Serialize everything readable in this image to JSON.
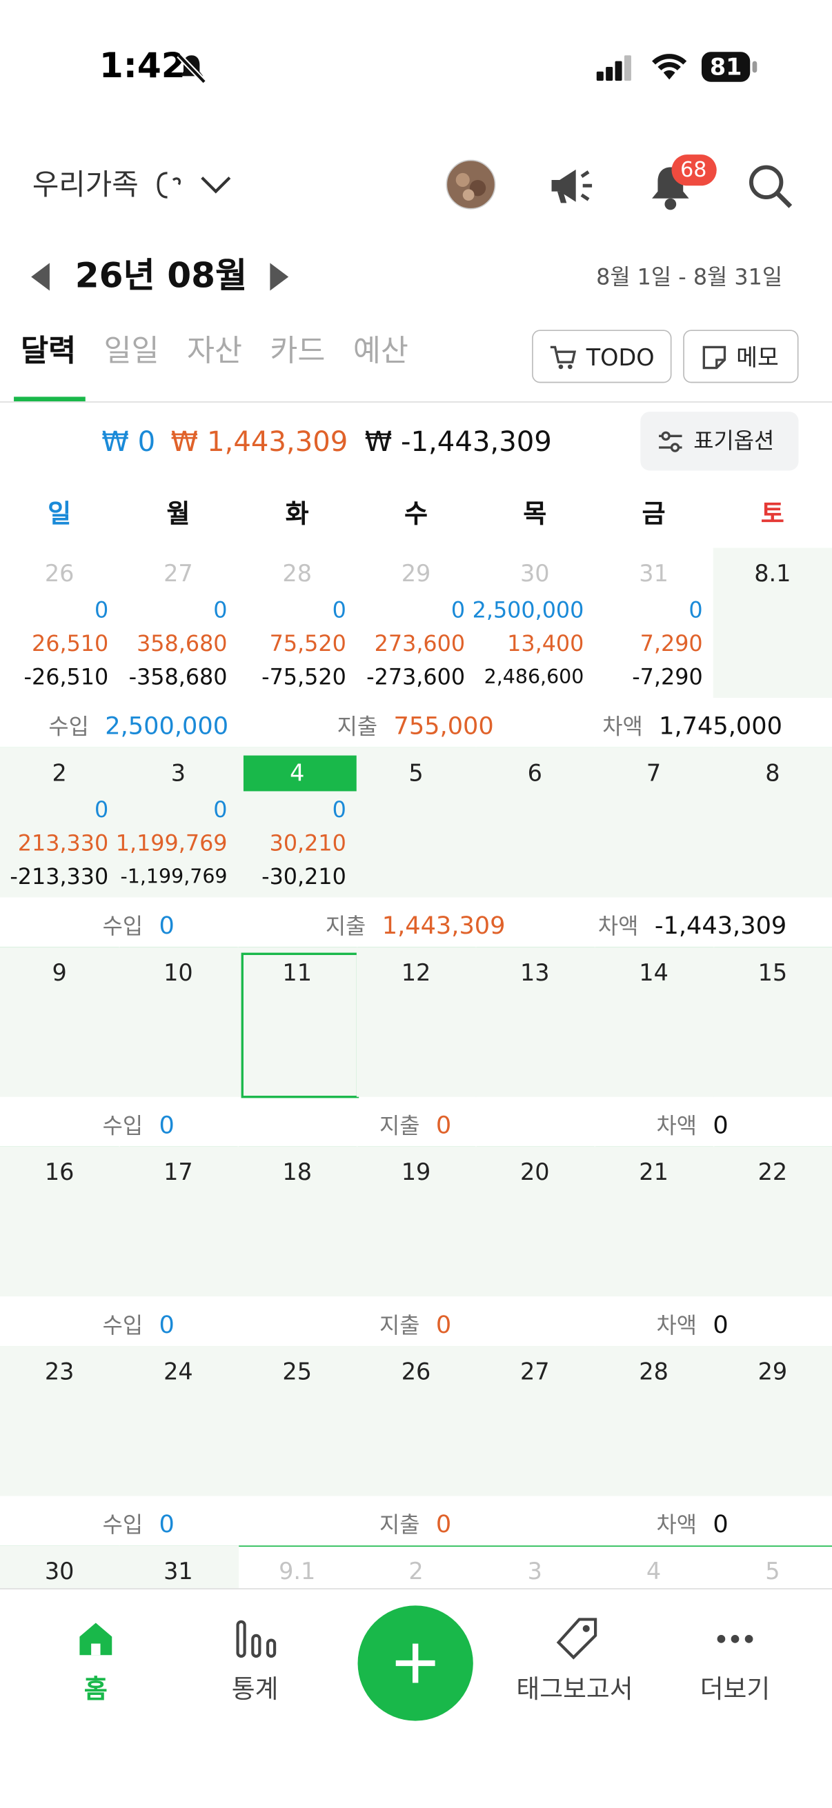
{
  "status": {
    "time": "1:42",
    "battery": "81"
  },
  "header": {
    "group": "우리가족",
    "badge": "68"
  },
  "month": {
    "title": "26년 08월",
    "range": "8월 1일 - 8월 31일"
  },
  "tabs": [
    "달력",
    "일일",
    "자산",
    "카드",
    "예산"
  ],
  "buttons": [
    "TODO",
    "메모"
  ],
  "summary": {
    "income": "₩ 0",
    "expense": "₩ 1,443,309",
    "balance": "₩ -1,443,309",
    "option": "표기옵션"
  },
  "weekdays": [
    "일",
    "월",
    "화",
    "수",
    "목",
    "금",
    "토"
  ],
  "total_labels": [
    "수입",
    "지출",
    "차액"
  ],
  "weeks": [
    {
      "days": [
        {
          "date": "26",
          "other_month": true,
          "income": "0",
          "expense": "26,510",
          "balance": "-26,510"
        },
        {
          "date": "27",
          "other_month": true,
          "income": "0",
          "expense": "358,680",
          "balance": "-358,680"
        },
        {
          "date": "28",
          "other_month": true,
          "income": "0",
          "expense": "75,520",
          "balance": "-75,520"
        },
        {
          "date": "29",
          "other_month": true,
          "income": "0",
          "expense": "273,600",
          "balance": "-273,600"
        },
        {
          "date": "30",
          "other_month": true,
          "income": "2,500,000",
          "expense": "13,400",
          "balance": "2,486,600"
        },
        {
          "date": "31",
          "other_month": true,
          "income": "0",
          "expense": "7,290",
          "balance": "-7,290"
        },
        {
          "date": "8.1"
        }
      ],
      "total": {
        "income": "2,500,000",
        "expense": "755,000",
        "balance": "1,745,000"
      }
    },
    {
      "days": [
        {
          "date": "2",
          "income": "0",
          "expense": "213,330",
          "balance": "-213,330"
        },
        {
          "date": "3",
          "income": "0",
          "expense": "1,199,769",
          "balance": "-1,199,769"
        },
        {
          "date": "4",
          "today": true,
          "income": "0",
          "expense": "30,210",
          "balance": "-30,210"
        },
        {
          "date": "5"
        },
        {
          "date": "6"
        },
        {
          "date": "7"
        },
        {
          "date": "8"
        }
      ],
      "total": {
        "income": "0",
        "expense": "1,443,309",
        "balance": "-1,443,309"
      }
    },
    {
      "days": [
        {
          "date": "9"
        },
        {
          "date": "10"
        },
        {
          "date": "11",
          "selected": true
        },
        {
          "date": "12"
        },
        {
          "date": "13"
        },
        {
          "date": "14"
        },
        {
          "date": "15"
        }
      ],
      "total": {
        "income": "0",
        "expense": "0",
        "balance": "0"
      }
    },
    {
      "days": [
        {
          "date": "16"
        },
        {
          "date": "17"
        },
        {
          "date": "18"
        },
        {
          "date": "19"
        },
        {
          "date": "20"
        },
        {
          "date": "21"
        },
        {
          "date": "22"
        }
      ],
      "total": {
        "income": "0",
        "expense": "0",
        "balance": "0"
      }
    },
    {
      "days": [
        {
          "date": "23"
        },
        {
          "date": "24"
        },
        {
          "date": "25"
        },
        {
          "date": "26"
        },
        {
          "date": "27"
        },
        {
          "date": "28"
        },
        {
          "date": "29"
        }
      ],
      "total": {
        "income": "0",
        "expense": "0",
        "balance": "0"
      }
    },
    {
      "days": [
        {
          "date": "30"
        },
        {
          "date": "31"
        },
        {
          "date": "9.1",
          "other_month": true
        },
        {
          "date": "2",
          "other_month": true
        },
        {
          "date": "3",
          "other_month": true
        },
        {
          "date": "4",
          "other_month": true
        },
        {
          "date": "5",
          "other_month": true
        }
      ]
    }
  ],
  "nav": [
    "홈",
    "통계",
    "태그보고서",
    "더보기"
  ]
}
